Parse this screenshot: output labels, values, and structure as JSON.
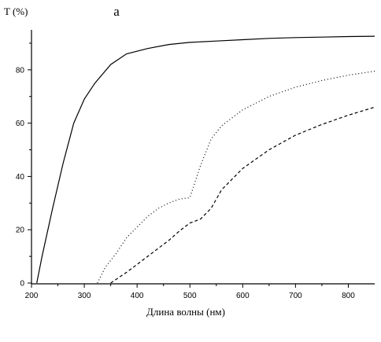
{
  "chart_data": {
    "type": "line",
    "panel_label": "a",
    "ylabel": "T (%)",
    "xlabel": "Длина волны  (нм)",
    "xlim": [
      200,
      850
    ],
    "ylim": [
      0,
      95
    ],
    "xticks": [
      200,
      300,
      400,
      500,
      600,
      700,
      800
    ],
    "yticks": [
      0,
      20,
      40,
      60,
      80
    ],
    "grid": false,
    "series": [
      {
        "style": "solid",
        "x": [
          210,
          220,
          240,
          260,
          280,
          300,
          320,
          350,
          380,
          420,
          460,
          500,
          550,
          600,
          650,
          700,
          750,
          800,
          850
        ],
        "y": [
          0,
          10,
          28,
          45,
          60,
          69,
          75,
          82,
          86,
          88,
          89.5,
          90.3,
          90.8,
          91.3,
          91.8,
          92.1,
          92.3,
          92.5,
          92.6
        ]
      },
      {
        "style": "dotted",
        "x": [
          325,
          340,
          360,
          380,
          400,
          420,
          440,
          460,
          480,
          500,
          520,
          540,
          560,
          600,
          650,
          700,
          750,
          800,
          850
        ],
        "y": [
          0,
          6,
          11,
          17,
          21,
          25,
          28,
          30,
          31.5,
          32,
          44,
          54,
          59,
          65,
          70,
          73.5,
          76,
          78,
          79.5
        ]
      },
      {
        "style": "dashed",
        "x": [
          350,
          380,
          400,
          420,
          440,
          460,
          480,
          500,
          520,
          540,
          560,
          600,
          650,
          700,
          750,
          800,
          850
        ],
        "y": [
          0,
          4,
          7,
          10,
          13,
          16,
          19.5,
          22.5,
          24,
          28,
          35,
          43,
          50,
          55.5,
          59.5,
          63,
          66
        ]
      }
    ]
  },
  "colors": {
    "line": "#000000",
    "background": "#ffffff"
  }
}
